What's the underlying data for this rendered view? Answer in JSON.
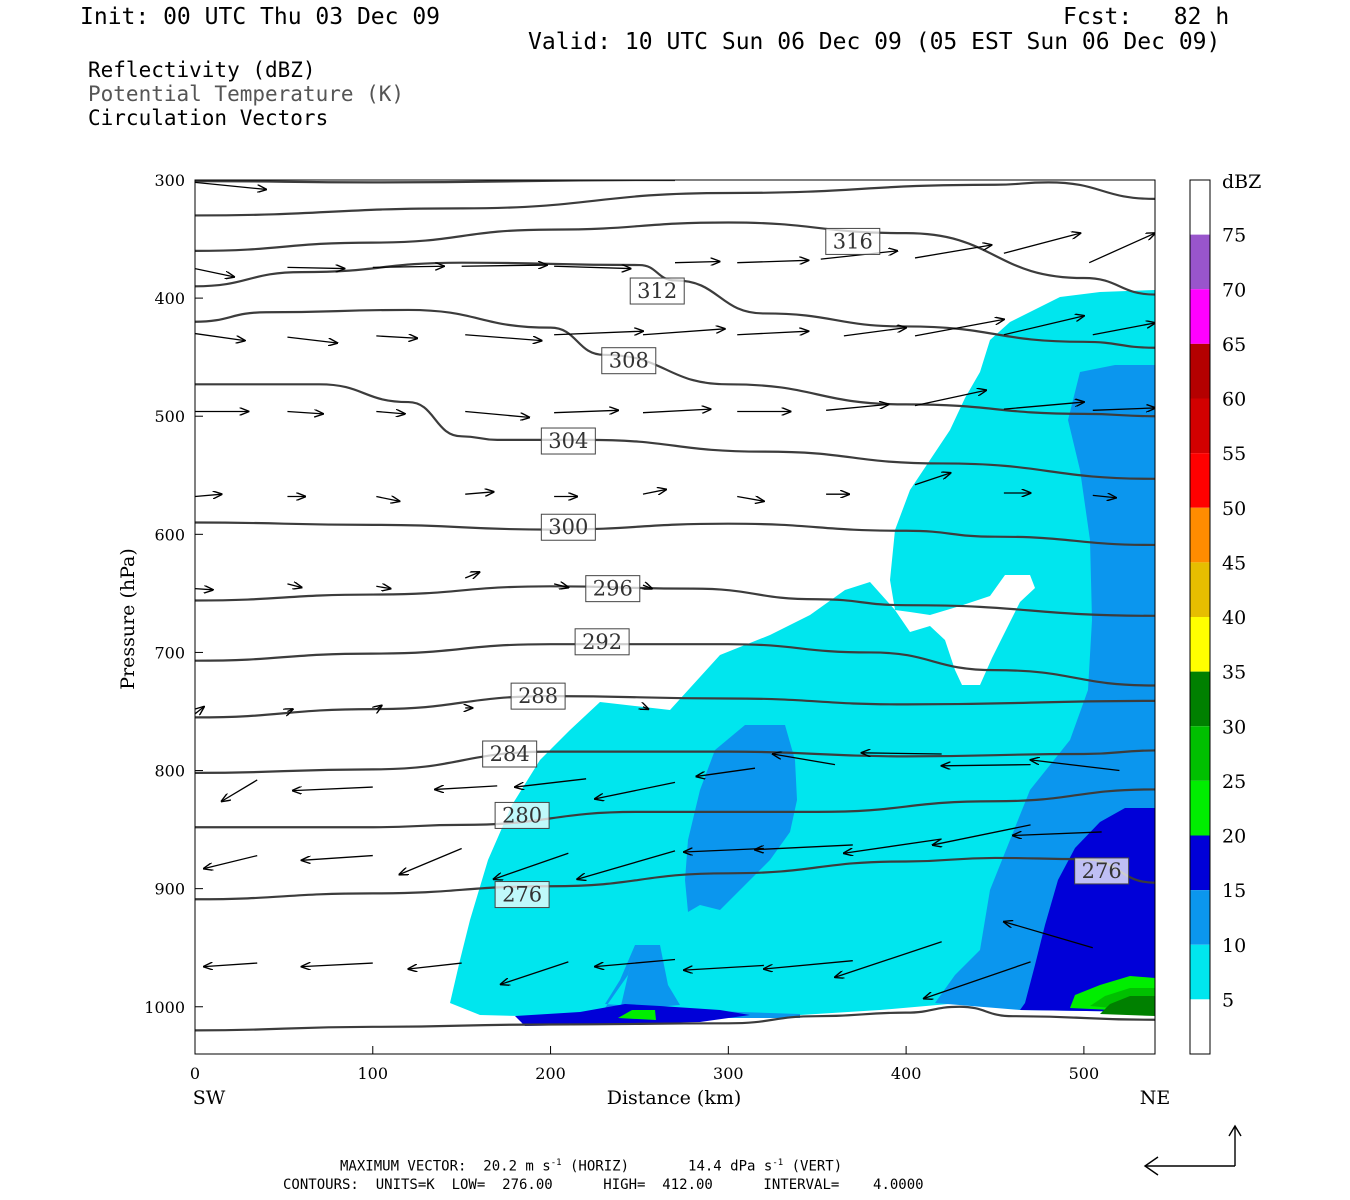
{
  "header": {
    "init": "Init: 00 UTC Thu 03 Dec 09",
    "fcst": "Fcst:   82 h",
    "valid": "Valid: 10 UTC Sun 06 Dec 09 (05 EST Sun 06 Dec 09)"
  },
  "fields": {
    "reflectivity": "Reflectivity (dBZ)",
    "theta": "Potential Temperature (K)",
    "vectors": "Circulation Vectors"
  },
  "footer": {
    "max_vector": "MAXIMUM VECTOR:  20.2 m s",
    "sup1": "-1",
    "horiz": " (HORIZ)",
    "vert_val": "14.4 dPa s",
    "sup2": "-1",
    "vert": " (VERT)",
    "contours": "CONTOURS:  UNITS=K  LOW=  276.00      HIGH=  412.00      INTERVAL=    4.0000"
  },
  "colors": {
    "r5": "#00e6ee",
    "r10": "#0b96ee",
    "r15": "#0000d8",
    "r20": "#00ee00",
    "r25": "#00c000",
    "r30": "#008000",
    "contour": "#3c3c3c"
  },
  "chart_data": {
    "type": "cross-section",
    "xlabel": "Distance (km)",
    "ylabel": "Pressure (hPa)",
    "xlim": [
      0,
      540
    ],
    "ylim": [
      1040,
      300
    ],
    "x_ticks": [
      "0",
      "100",
      "200",
      "300",
      "400",
      "500"
    ],
    "y_ticks": [
      "300",
      "400",
      "500",
      "600",
      "700",
      "800",
      "900",
      "1000"
    ],
    "x_ends": {
      "left": "SW",
      "right": "NE"
    },
    "colorbar": {
      "unit": "dBZ",
      "levels": [
        "5",
        "10",
        "15",
        "20",
        "25",
        "30",
        "35",
        "40",
        "45",
        "50",
        "55",
        "60",
        "65",
        "70",
        "75"
      ],
      "colors": [
        "#ffffff",
        "#00e6ee",
        "#0b96ee",
        "#0000d8",
        "#00ee00",
        "#00c000",
        "#008000",
        "#ffff00",
        "#e6be00",
        "#ff8c00",
        "#ff0000",
        "#d20000",
        "#b40000",
        "#ff00ff",
        "#9955cc",
        "#ffffff"
      ]
    },
    "contour_labels": [
      {
        "text": "316",
        "x": 370,
        "p": 352
      },
      {
        "text": "312",
        "x": 260,
        "p": 394
      },
      {
        "text": "308",
        "x": 244,
        "p": 453
      },
      {
        "text": "304",
        "x": 210,
        "p": 521
      },
      {
        "text": "300",
        "x": 210,
        "p": 594
      },
      {
        "text": "296",
        "x": 235,
        "p": 646
      },
      {
        "text": "292",
        "x": 229,
        "p": 691
      },
      {
        "text": "288",
        "x": 193,
        "p": 737
      },
      {
        "text": "284",
        "x": 177,
        "p": 786
      },
      {
        "text": "280",
        "x": 184,
        "p": 838
      },
      {
        "text": "276",
        "x": 184,
        "p": 905
      },
      {
        "text": "276",
        "x": 510,
        "p": 885
      }
    ],
    "isentropes": [
      [
        [
          0,
          301
        ],
        [
          100,
          302
        ],
        [
          270,
          300
        ]
      ],
      [
        [
          0,
          330
        ],
        [
          150,
          324
        ],
        [
          300,
          311
        ],
        [
          450,
          304
        ],
        [
          480,
          302
        ],
        [
          540,
          316
        ]
      ],
      [
        [
          0,
          360
        ],
        [
          100,
          353
        ],
        [
          200,
          342
        ],
        [
          300,
          336
        ],
        [
          400,
          345
        ],
        [
          500,
          383
        ],
        [
          540,
          397
        ]
      ],
      [
        [
          0,
          390
        ],
        [
          60,
          378
        ],
        [
          150,
          370
        ],
        [
          250,
          372
        ],
        [
          270,
          385
        ],
        [
          320,
          413
        ],
        [
          400,
          424
        ],
        [
          500,
          437
        ],
        [
          540,
          442
        ]
      ],
      [
        [
          0,
          420
        ],
        [
          40,
          412
        ],
        [
          120,
          410
        ],
        [
          200,
          425
        ],
        [
          230,
          448
        ],
        [
          300,
          473
        ],
        [
          400,
          490
        ],
        [
          500,
          498
        ],
        [
          540,
          500
        ]
      ],
      [
        [
          0,
          473
        ],
        [
          70,
          473
        ],
        [
          120,
          488
        ],
        [
          150,
          517
        ],
        [
          170,
          520
        ],
        [
          220,
          520
        ],
        [
          320,
          530
        ],
        [
          420,
          540
        ],
        [
          540,
          553
        ]
      ],
      [
        [
          0,
          590
        ],
        [
          100,
          592
        ],
        [
          200,
          596
        ],
        [
          300,
          591
        ],
        [
          400,
          597
        ],
        [
          450,
          602
        ],
        [
          540,
          609
        ]
      ],
      [
        [
          0,
          656
        ],
        [
          100,
          651
        ],
        [
          200,
          644
        ],
        [
          280,
          646
        ],
        [
          350,
          655
        ],
        [
          400,
          660
        ],
        [
          540,
          669
        ]
      ],
      [
        [
          0,
          707
        ],
        [
          100,
          701
        ],
        [
          200,
          693
        ],
        [
          300,
          693
        ],
        [
          380,
          700
        ],
        [
          450,
          715
        ],
        [
          540,
          728
        ]
      ],
      [
        [
          0,
          755
        ],
        [
          100,
          748
        ],
        [
          200,
          737
        ],
        [
          300,
          739
        ],
        [
          400,
          744
        ],
        [
          540,
          741
        ]
      ],
      [
        [
          0,
          802
        ],
        [
          100,
          799
        ],
        [
          200,
          784
        ],
        [
          300,
          784
        ],
        [
          400,
          788
        ],
        [
          500,
          786
        ],
        [
          540,
          783
        ]
      ],
      [
        [
          0,
          848
        ],
        [
          100,
          848
        ],
        [
          150,
          846
        ],
        [
          250,
          835
        ],
        [
          350,
          835
        ],
        [
          450,
          826
        ],
        [
          540,
          816
        ]
      ],
      [
        [
          0,
          909
        ],
        [
          100,
          904
        ],
        [
          200,
          898
        ],
        [
          300,
          887
        ],
        [
          400,
          877
        ],
        [
          450,
          874
        ],
        [
          500,
          875
        ],
        [
          540,
          895
        ]
      ],
      [
        [
          0,
          1020
        ],
        [
          100,
          1017
        ],
        [
          200,
          1015
        ],
        [
          300,
          1014
        ],
        [
          350,
          1008
        ],
        [
          400,
          1005
        ],
        [
          430,
          1000
        ],
        [
          460,
          1008
        ],
        [
          540,
          1011
        ]
      ]
    ],
    "vectors": [
      [
        0,
        302,
        40,
        308
      ],
      [
        0,
        375,
        22,
        382
      ],
      [
        52,
        374,
        84,
        375
      ],
      [
        100,
        374,
        140,
        373
      ],
      [
        150,
        373,
        198,
        372
      ],
      [
        202,
        373,
        245,
        375
      ],
      [
        270,
        370,
        295,
        369
      ],
      [
        305,
        370,
        345,
        368
      ],
      [
        352,
        367,
        395,
        360
      ],
      [
        405,
        366,
        448,
        355
      ],
      [
        455,
        362,
        498,
        345
      ],
      [
        503,
        370,
        540,
        345
      ],
      [
        0,
        430,
        28,
        436
      ],
      [
        52,
        433,
        80,
        438
      ],
      [
        102,
        432,
        125,
        434
      ],
      [
        152,
        431,
        195,
        436
      ],
      [
        202,
        431,
        252,
        428
      ],
      [
        252,
        431,
        298,
        426
      ],
      [
        305,
        431,
        345,
        428
      ],
      [
        365,
        432,
        400,
        425
      ],
      [
        405,
        432,
        455,
        418
      ],
      [
        455,
        431,
        500,
        415
      ],
      [
        505,
        431,
        540,
        421
      ],
      [
        0,
        496,
        30,
        496
      ],
      [
        52,
        496,
        72,
        498
      ],
      [
        102,
        496,
        118,
        498
      ],
      [
        152,
        496,
        188,
        501
      ],
      [
        202,
        497,
        238,
        495
      ],
      [
        252,
        497,
        290,
        494
      ],
      [
        305,
        496,
        335,
        496
      ],
      [
        355,
        495,
        390,
        490
      ],
      [
        405,
        491,
        445,
        478
      ],
      [
        455,
        494,
        500,
        488
      ],
      [
        505,
        495,
        540,
        493
      ],
      [
        0,
        568,
        15,
        566
      ],
      [
        52,
        568,
        62,
        568
      ],
      [
        102,
        568,
        115,
        572
      ],
      [
        152,
        566,
        168,
        564
      ],
      [
        202,
        568,
        215,
        568
      ],
      [
        252,
        566,
        265,
        562
      ],
      [
        305,
        568,
        320,
        572
      ],
      [
        355,
        566,
        368,
        566
      ],
      [
        405,
        558,
        425,
        548
      ],
      [
        455,
        565,
        470,
        565
      ],
      [
        505,
        567,
        518,
        569
      ],
      [
        0,
        646,
        10,
        647
      ],
      [
        52,
        642,
        60,
        645
      ],
      [
        102,
        644,
        110,
        646
      ],
      [
        152,
        637,
        160,
        632
      ],
      [
        202,
        642,
        210,
        645
      ],
      [
        252,
        643,
        257,
        646
      ],
      [
        0,
        752,
        5,
        746
      ],
      [
        52,
        750,
        55,
        748
      ],
      [
        102,
        748,
        105,
        745
      ],
      [
        152,
        747,
        156,
        747
      ],
      [
        252,
        746,
        255,
        748
      ],
      [
        100,
        814,
        55,
        817
      ],
      [
        170,
        813,
        135,
        816
      ],
      [
        220,
        807,
        180,
        814
      ],
      [
        35,
        808,
        15,
        826
      ],
      [
        270,
        810,
        225,
        824
      ],
      [
        315,
        798,
        282,
        805
      ],
      [
        360,
        795,
        325,
        786
      ],
      [
        420,
        786,
        375,
        785
      ],
      [
        470,
        795,
        420,
        796
      ],
      [
        520,
        800,
        470,
        791
      ],
      [
        35,
        872,
        5,
        883
      ],
      [
        100,
        872,
        60,
        876
      ],
      [
        150,
        866,
        115,
        888
      ],
      [
        210,
        870,
        168,
        892
      ],
      [
        270,
        868,
        215,
        892
      ],
      [
        320,
        866,
        275,
        869
      ],
      [
        370,
        863,
        315,
        867
      ],
      [
        420,
        858,
        365,
        870
      ],
      [
        470,
        846,
        415,
        863
      ],
      [
        510,
        852,
        460,
        855
      ],
      [
        35,
        963,
        5,
        966
      ],
      [
        100,
        963,
        60,
        966
      ],
      [
        150,
        963,
        120,
        968
      ],
      [
        210,
        962,
        172,
        981
      ],
      [
        270,
        960,
        225,
        966
      ],
      [
        320,
        965,
        275,
        969
      ],
      [
        370,
        961,
        320,
        968
      ],
      [
        420,
        945,
        360,
        975
      ],
      [
        470,
        962,
        410,
        993
      ],
      [
        505,
        950,
        455,
        928
      ]
    ]
  }
}
